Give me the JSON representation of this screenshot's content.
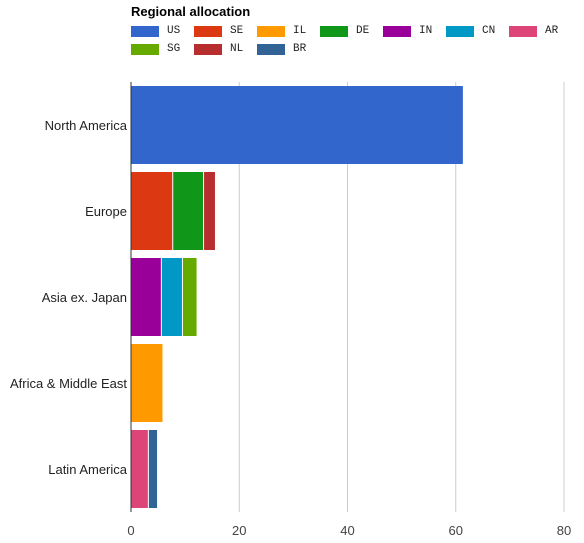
{
  "chart_data": {
    "type": "bar",
    "orientation": "horizontal",
    "stacked": true,
    "title": "Regional allocation",
    "categories": [
      "North America",
      "Europe",
      "Asia ex. Japan",
      "Africa & Middle East",
      "Latin America"
    ],
    "series": [
      {
        "name": "US",
        "color": "#3366cc",
        "values": [
          61.5,
          0,
          0,
          0,
          0
        ]
      },
      {
        "name": "SE",
        "color": "#dc3912",
        "values": [
          0,
          7.8,
          0,
          0,
          0
        ]
      },
      {
        "name": "IL",
        "color": "#ff9900",
        "values": [
          0,
          0,
          0,
          6.0,
          0
        ]
      },
      {
        "name": "DE",
        "color": "#109618",
        "values": [
          0,
          5.7,
          0,
          0,
          0
        ]
      },
      {
        "name": "IN",
        "color": "#990099",
        "values": [
          0,
          0,
          5.7,
          0,
          0
        ]
      },
      {
        "name": "CN",
        "color": "#0099c6",
        "values": [
          0,
          0,
          3.9,
          0,
          0
        ]
      },
      {
        "name": "AR",
        "color": "#dd4477",
        "values": [
          0,
          0,
          0,
          0,
          3.3
        ]
      },
      {
        "name": "SG",
        "color": "#66aa00",
        "values": [
          0,
          0,
          2.7,
          0,
          0
        ]
      },
      {
        "name": "NL",
        "color": "#b82e2e",
        "values": [
          0,
          2.2,
          0,
          0,
          0
        ]
      },
      {
        "name": "BR",
        "color": "#316395",
        "values": [
          0,
          0,
          0,
          0,
          1.7
        ]
      }
    ],
    "xlim": [
      0,
      80
    ],
    "xticks": [
      0,
      20,
      40,
      60,
      80
    ],
    "grid": true,
    "legend_position": "top"
  }
}
